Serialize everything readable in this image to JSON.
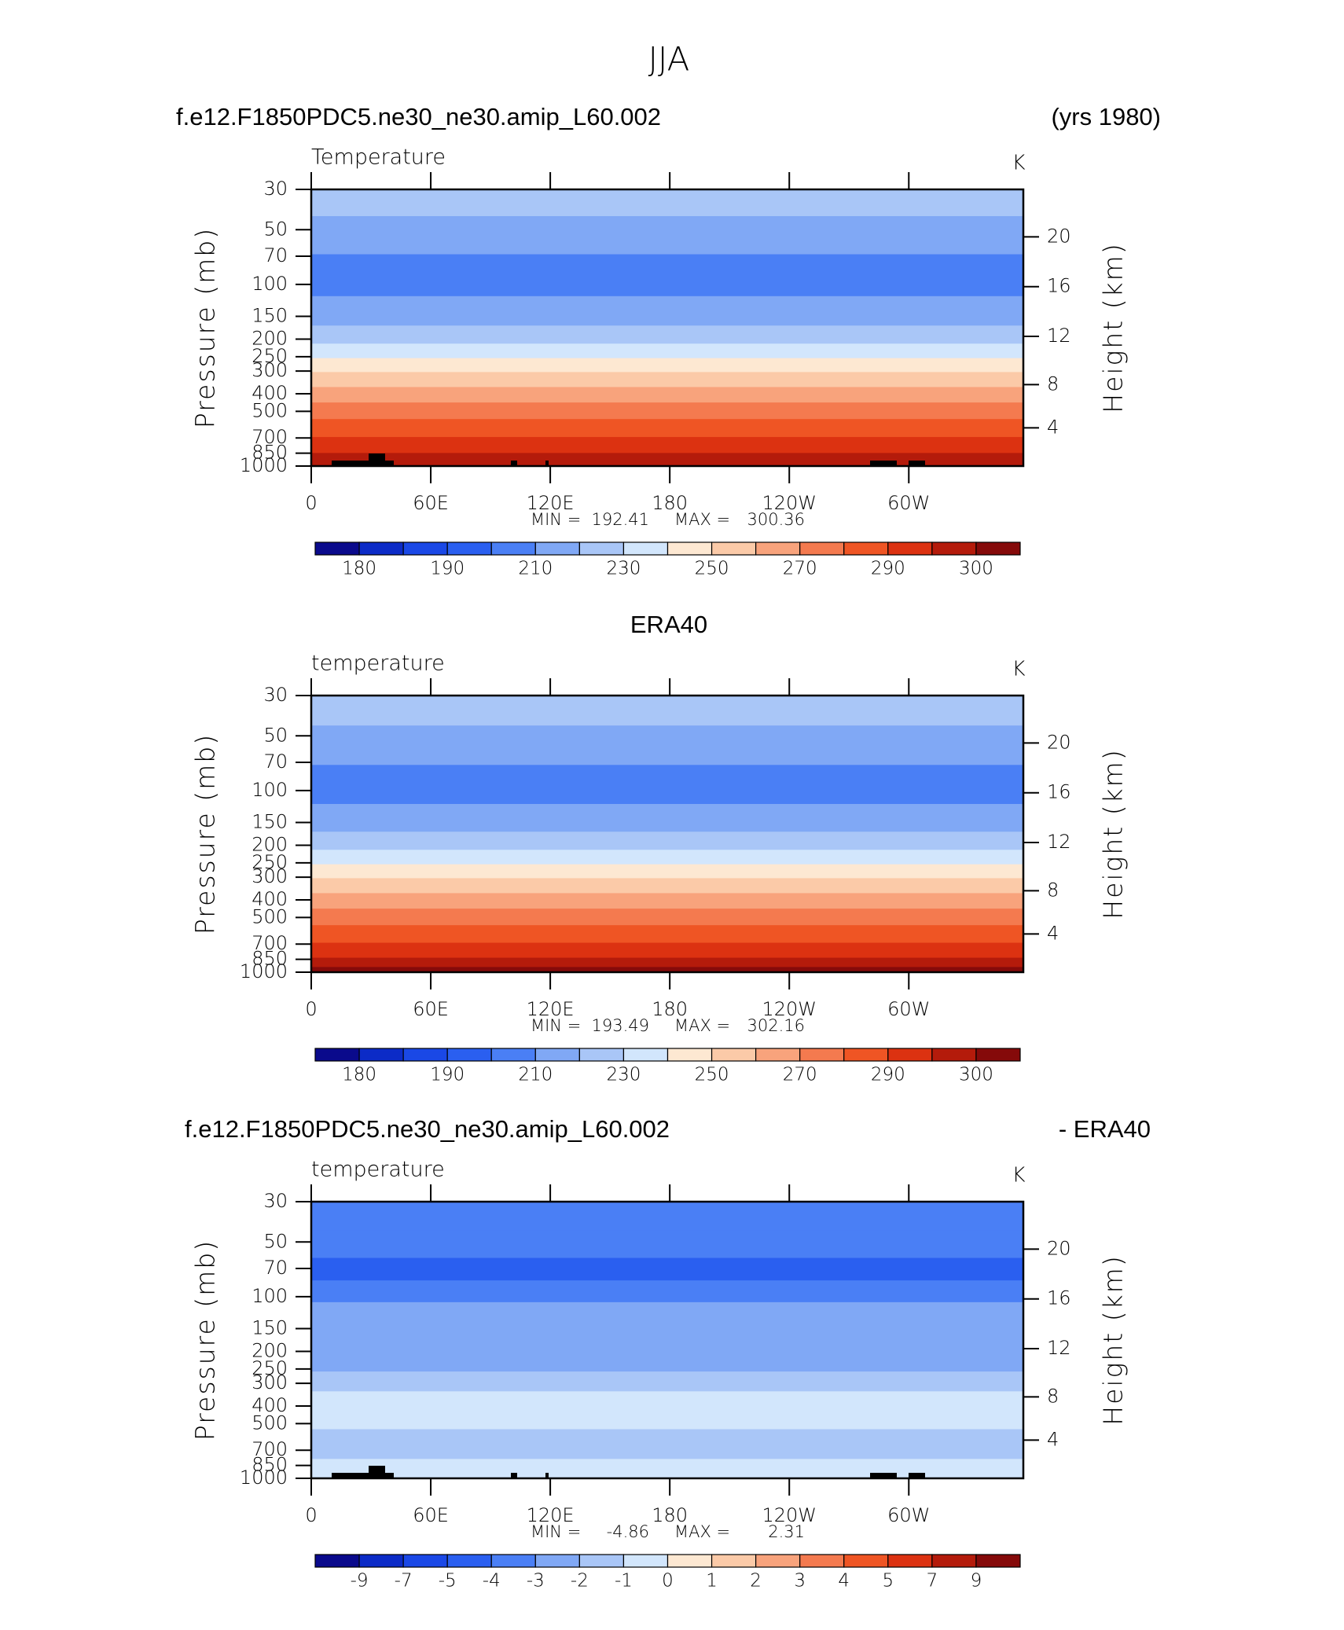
{
  "title": "JJA",
  "chart_data": [
    {
      "type": "contour",
      "title_left": "f.e12.F1850PDC5.ne30_ne30.amip_L60.002",
      "title_right": "(yrs 1980)",
      "subtitle": "Temperature",
      "units": "K",
      "ylabel": "Pressure (mb)",
      "y2label": "Height (km)",
      "ylim": [
        1000,
        30
      ],
      "yscale": "log",
      "yticks": [
        30,
        50,
        70,
        100,
        150,
        200,
        250,
        300,
        400,
        500,
        700,
        850,
        1000
      ],
      "y2ticks": [
        4,
        8,
        12,
        16,
        20
      ],
      "xlim": [
        0,
        357.5
      ],
      "xticks": [
        0,
        {
          "value": 60,
          "label": "60E"
        },
        {
          "value": 120,
          "label": "120E"
        },
        180,
        {
          "value": 240,
          "label": "120W"
        },
        {
          "value": 300,
          "label": "60W"
        }
      ],
      "min_label": "MIN =",
      "min": 192.41,
      "max_label": "MAX =",
      "max": 300.36,
      "pressure": [
        34.6,
        51.2,
        91,
        148,
        192,
        234,
        277,
        333,
        405,
        493,
        616,
        778,
        923
      ],
      "values": [
        225,
        215,
        205,
        215,
        225,
        235,
        245,
        255,
        265,
        275,
        283,
        292,
        297
      ],
      "levels": [
        180,
        185,
        190,
        200,
        210,
        220,
        230,
        240,
        250,
        260,
        270,
        280,
        290,
        295,
        300
      ],
      "level_label_stride": 2,
      "colors": [
        "#0a0a8c",
        "#0c2bc7",
        "#1a48e6",
        "#2a5ff0",
        "#4a7ff5",
        "#80a8f5",
        "#a9c6f7",
        "#d2e6fc",
        "#fde8d2",
        "#fbcaa8",
        "#f8a37c",
        "#f47a4f",
        "#ef5524",
        "#dc3211",
        "#b41b0b",
        "#850a0a"
      ]
    },
    {
      "type": "contour",
      "title": "ERA40",
      "subtitle": "temperature",
      "units": "K",
      "ylabel": "Pressure (mb)",
      "y2label": "Height (km)",
      "ylim": [
        1000,
        30
      ],
      "yscale": "log",
      "yticks": [
        30,
        50,
        70,
        100,
        150,
        200,
        250,
        300,
        400,
        500,
        700,
        850,
        1000
      ],
      "y2ticks": [
        4,
        8,
        12,
        16,
        20
      ],
      "xlim": [
        0,
        357.5
      ],
      "xticks": [
        0,
        {
          "value": 60,
          "label": "60E"
        },
        {
          "value": 120,
          "label": "120E"
        },
        180,
        {
          "value": 240,
          "label": "120W"
        },
        {
          "value": 300,
          "label": "60W"
        }
      ],
      "min_label": "MIN =",
      "min": 193.49,
      "max_label": "MAX =",
      "max": 302.16,
      "pressure": [
        35,
        55,
        95,
        148,
        192,
        234,
        277,
        333,
        405,
        493,
        616,
        770,
        900,
        975
      ],
      "values": [
        225,
        215,
        205,
        215,
        225,
        235,
        245,
        255,
        265,
        275,
        285,
        292,
        297,
        302
      ],
      "levels": [
        180,
        185,
        190,
        200,
        210,
        220,
        230,
        240,
        250,
        260,
        270,
        280,
        290,
        295,
        300
      ],
      "level_label_stride": 2,
      "colors": [
        "#0a0a8c",
        "#0c2bc7",
        "#1a48e6",
        "#2a5ff0",
        "#4a7ff5",
        "#80a8f5",
        "#a9c6f7",
        "#d2e6fc",
        "#fde8d2",
        "#fbcaa8",
        "#f8a37c",
        "#f47a4f",
        "#ef5524",
        "#dc3211",
        "#b41b0b",
        "#850a0a"
      ]
    },
    {
      "type": "contour",
      "title_left": "f.e12.F1850PDC5.ne30_ne30.amip_L60.002",
      "title_right": "- ERA40",
      "subtitle": "temperature",
      "units": "K",
      "ylabel": "Pressure (mb)",
      "y2label": "Height (km)",
      "ylim": [
        1000,
        30
      ],
      "yscale": "log",
      "yticks": [
        30,
        50,
        70,
        100,
        150,
        200,
        250,
        300,
        400,
        500,
        700,
        850,
        1000
      ],
      "y2ticks": [
        4,
        8,
        12,
        16,
        20
      ],
      "xlim": [
        0,
        357.5
      ],
      "xticks": [
        0,
        {
          "value": 60,
          "label": "60E"
        },
        {
          "value": 120,
          "label": "120E"
        },
        180,
        {
          "value": 240,
          "label": "120W"
        },
        {
          "value": 300,
          "label": "60W"
        }
      ],
      "min_label": "MIN =",
      "min": -4.86,
      "max_label": "MAX =",
      "max": 2.31,
      "pressure": [
        36,
        52,
        72,
        92,
        125,
        170,
        230,
        290,
        380,
        480,
        600,
        720,
        850,
        950
      ],
      "values": [
        -3.5,
        -3.5,
        -4.5,
        -3.5,
        -2.5,
        -2.5,
        -2.5,
        -1.5,
        -0.5,
        -0.5,
        -1.5,
        -1.5,
        -0.5,
        -0.5
      ],
      "levels": [
        -9,
        -7,
        -5,
        -4,
        -3,
        -2,
        -1,
        0,
        1,
        2,
        3,
        4,
        5,
        7,
        9
      ],
      "level_label_stride": 1,
      "colors": [
        "#0a0a8c",
        "#0c2bc7",
        "#1a48e6",
        "#2a5ff0",
        "#4a7ff5",
        "#80a8f5",
        "#a9c6f7",
        "#d2e6fc",
        "#fde8d2",
        "#fbcaa8",
        "#f8a37c",
        "#f47a4f",
        "#ef5524",
        "#dc3211",
        "#b41b0b",
        "#850a0a"
      ]
    }
  ]
}
